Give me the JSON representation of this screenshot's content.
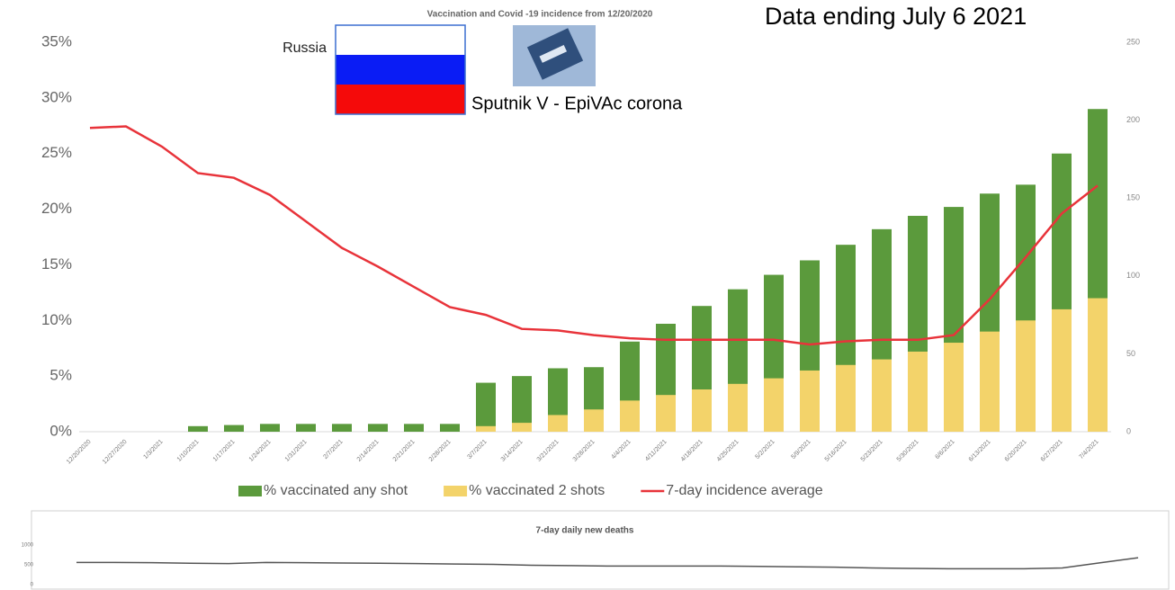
{
  "chart_data": [
    {
      "type": "bar-line",
      "title": "Vaccination and Covid -19 incidence from 12/20/2020",
      "annotations": [
        "Data ending July 6 2021",
        "Russia",
        "Sputnik V - EpiVAc corona"
      ],
      "categories": [
        "12/20/2020",
        "12/27/2020",
        "1/3/2021",
        "1/10/2021",
        "1/17/2021",
        "1/24/2021",
        "1/31/2021",
        "2/7/2021",
        "2/14/2021",
        "2/21/2021",
        "2/28/2021",
        "3/7/2021",
        "3/14/2021",
        "3/21/2021",
        "3/28/2021",
        "4/4/2021",
        "4/11/2021",
        "4/18/2021",
        "4/25/2021",
        "5/2/2021",
        "5/9/2021",
        "5/16/2021",
        "5/23/2021",
        "5/30/2021",
        "6/6/2021",
        "6/13/2021",
        "6/20/2021",
        "6/27/2021",
        "7/4/2021"
      ],
      "series": [
        {
          "name": "% vaccinated any shot",
          "kind": "bar",
          "color": "#5b9a3c",
          "values": [
            0,
            0,
            0,
            0.5,
            0.6,
            0.7,
            0.7,
            0.7,
            0.7,
            0.7,
            0.7,
            4.4,
            5.0,
            5.7,
            5.8,
            8.1,
            9.7,
            11.3,
            12.8,
            14.1,
            15.4,
            16.8,
            18.2,
            19.4,
            20.2,
            21.4,
            22.2,
            25,
            29
          ]
        },
        {
          "name": "% vaccinated 2 shots",
          "kind": "bar",
          "color": "#f3d36a",
          "values": [
            0,
            0,
            0,
            0,
            0,
            0,
            0,
            0,
            0,
            0,
            0,
            0.5,
            0.8,
            1.5,
            2,
            2.8,
            3.3,
            3.8,
            4.3,
            4.8,
            5.5,
            6,
            6.5,
            7.2,
            8,
            9,
            10,
            11,
            12
          ]
        },
        {
          "name": "7-day incidence average",
          "kind": "line",
          "axis": "y2",
          "color": "#e8333a",
          "values": [
            195,
            196,
            183,
            166,
            163,
            152,
            135,
            118,
            106,
            93,
            80,
            75,
            66,
            65,
            62,
            60,
            59,
            59,
            59,
            59,
            56,
            58,
            59,
            59,
            62,
            85,
            112,
            140,
            158
          ]
        }
      ],
      "ylim": [
        0,
        35
      ],
      "yticks": [
        {
          "value": 0,
          "label": "0%"
        },
        {
          "value": 5,
          "label": "5%"
        },
        {
          "value": 10,
          "label": "10%"
        },
        {
          "value": 15,
          "label": "15%"
        },
        {
          "value": 20,
          "label": "20%"
        },
        {
          "value": 25,
          "label": "25%"
        },
        {
          "value": 30,
          "label": "30%"
        },
        {
          "value": 35,
          "label": "35%"
        }
      ],
      "y2lim": [
        0,
        250
      ],
      "y2ticks": [
        0,
        50,
        100,
        150,
        200,
        250
      ],
      "legend": "bottom"
    },
    {
      "type": "line",
      "title": "7-day daily new deaths",
      "color": "#555555",
      "values": [
        560,
        560,
        555,
        540,
        530,
        560,
        555,
        545,
        540,
        530,
        520,
        510,
        490,
        480,
        470,
        470,
        470,
        470,
        460,
        450,
        440,
        420,
        410,
        400,
        400,
        400,
        420,
        550,
        680
      ],
      "ylim": [
        0,
        1000
      ],
      "yticks": [
        0,
        500,
        1000
      ]
    }
  ]
}
